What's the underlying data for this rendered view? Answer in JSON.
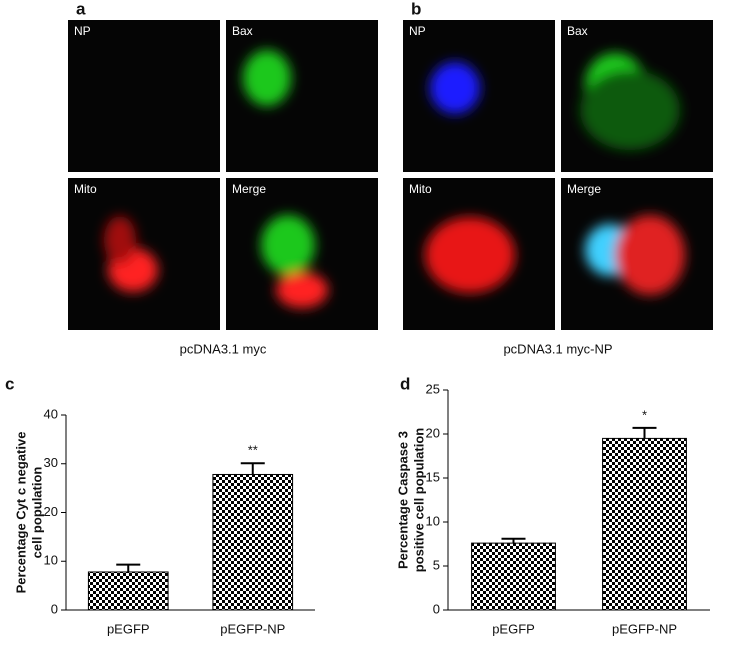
{
  "panels": [
    {
      "label": "a",
      "caption": "pcDNA3.1 myc",
      "images": [
        "NP",
        "Bax",
        "Mito",
        "Merge"
      ]
    },
    {
      "label": "b",
      "caption": "pcDNA3.1 myc-NP",
      "images": [
        "NP",
        "Bax",
        "Mito",
        "Merge"
      ]
    }
  ],
  "chart_data": [
    {
      "type": "bar",
      "label": "c",
      "ylabel": [
        "Percentage Cyt c negative",
        "cell population"
      ],
      "categories": [
        "pEGFP",
        "pEGFP-NP"
      ],
      "values": [
        7.8,
        27.8
      ],
      "errors": [
        1.5,
        2.3
      ],
      "significance": [
        null,
        "**"
      ],
      "color": "#000000",
      "pattern": "checkerboard",
      "ylim": [
        0,
        40
      ],
      "yticks": [
        0,
        10,
        20,
        30,
        40
      ]
    },
    {
      "type": "bar",
      "label": "d",
      "ylabel": [
        "Percentage Caspase 3",
        "positive cell population"
      ],
      "categories": [
        "pEGFP",
        "pEGFP-NP"
      ],
      "values": [
        7.6,
        19.5
      ],
      "errors": [
        0.5,
        1.2
      ],
      "significance": [
        null,
        "*"
      ],
      "color": "#000000",
      "pattern": "checkerboard",
      "ylim": [
        0,
        25
      ],
      "yticks": [
        0,
        5,
        10,
        15,
        20,
        25
      ]
    }
  ]
}
